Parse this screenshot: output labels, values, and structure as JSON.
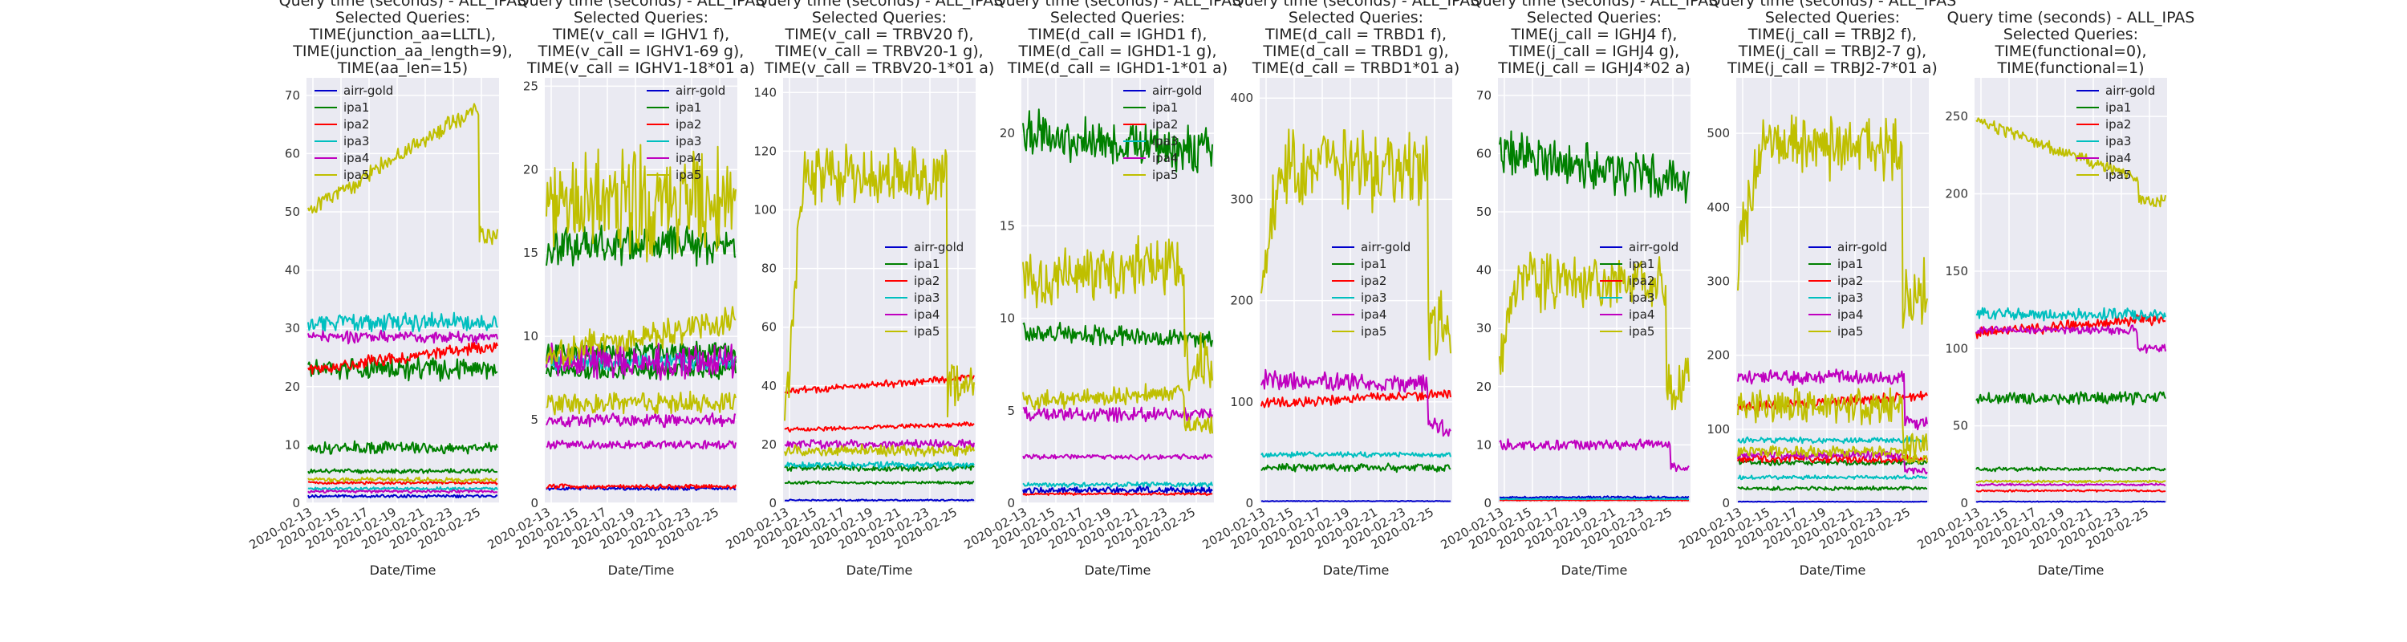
{
  "series_names": [
    "airr-gold",
    "ipa1",
    "ipa2",
    "ipa3",
    "ipa4",
    "ipa5"
  ],
  "colors": {
    "airr-gold": "#0000cc",
    "ipa1": "#008000",
    "ipa2": "#ff0000",
    "ipa3": "#00bfbf",
    "ipa4": "#bf00bf",
    "ipa5": "#bfbf00",
    "ipa5_alt": "#c8c800",
    "panel_bg": "#eaeaf2",
    "grid": "#ffffff"
  },
  "chart_data": [
    {
      "type": "line",
      "title_lines": [
        "Query time (seconds) - ALL_IPAS",
        "Selected Queries:",
        "TIME(junction_aa=LLTL),",
        "TIME(junction_aa_length=9),",
        "TIME(aa_len=15)"
      ],
      "xlabel": "Date/Time",
      "ylabel": "",
      "x_ticks": [
        "2020-02-13",
        "2020-02-15",
        "2020-02-17",
        "2020-02-19",
        "2020-02-21",
        "2020-02-23",
        "2020-02-25"
      ],
      "y_ticks": [
        0,
        10,
        20,
        30,
        40,
        50,
        60,
        70
      ],
      "ylim": [
        0,
        73
      ],
      "legend_position": "top-left",
      "series": [
        {
          "name": "airr-gold",
          "color": "#0000cc",
          "level": 1.2,
          "noise": 0.2
        },
        {
          "name": "ipa1",
          "color": "#008000",
          "level": 9.5,
          "noise": 0.8
        },
        {
          "name": "ipa1",
          "color": "#008000",
          "level": 23,
          "noise": 1.5
        },
        {
          "name": "ipa1",
          "color": "#008000",
          "level": 5.5,
          "noise": 0.3
        },
        {
          "name": "ipa2",
          "color": "#ff0000",
          "level": 23,
          "end_level": 27,
          "noise": 0.8
        },
        {
          "name": "ipa2",
          "color": "#ff0000",
          "level": 3.5,
          "noise": 0.2
        },
        {
          "name": "ipa3",
          "color": "#00bfbf",
          "level": 31,
          "noise": 1.2
        },
        {
          "name": "ipa3",
          "color": "#00bfbf",
          "level": 2.5,
          "noise": 0.2
        },
        {
          "name": "ipa4",
          "color": "#bf00bf",
          "level": 28.5,
          "noise": 0.8
        },
        {
          "name": "ipa4",
          "color": "#bf00bf",
          "level": 2,
          "noise": 0.2
        },
        {
          "name": "ipa5",
          "color": "#bfbf00",
          "level": 50,
          "end_level": 68,
          "drop_at": 0.9,
          "drop_level": 46,
          "noise": 1.2
        },
        {
          "name": "ipa5",
          "color": "#bfbf00",
          "level": 4,
          "noise": 0.3
        }
      ]
    },
    {
      "type": "line",
      "title_lines": [
        "Query time (seconds) - ALL_IPAS",
        "Selected Queries:",
        "TIME(v_call = IGHV1 f),",
        "TIME(v_call = IGHV1-69 g),",
        "TIME(v_call = IGHV1-18*01 a)"
      ],
      "xlabel": "Date/Time",
      "ylabel": "",
      "x_ticks": [
        "2020-02-13",
        "2020-02-15",
        "2020-02-17",
        "2020-02-19",
        "2020-02-21",
        "2020-02-23",
        "2020-02-25"
      ],
      "y_ticks": [
        0,
        5,
        10,
        15,
        20,
        25
      ],
      "ylim": [
        0,
        25.5
      ],
      "legend_position": "top-right",
      "series": [
        {
          "name": "airr-gold",
          "color": "#0000cc",
          "level": 0.9,
          "noise": 0.1
        },
        {
          "name": "ipa1",
          "color": "#008000",
          "level": 15.5,
          "noise": 0.9
        },
        {
          "name": "ipa1",
          "color": "#008000",
          "level": 9,
          "noise": 0.5
        },
        {
          "name": "ipa1",
          "color": "#008000",
          "level": 8,
          "noise": 0.4
        },
        {
          "name": "ipa2",
          "color": "#ff0000",
          "level": 1.0,
          "noise": 0.1
        },
        {
          "name": "ipa3",
          "color": "#00bfbf",
          "level": 8.5,
          "noise": 0.4
        },
        {
          "name": "ipa4",
          "color": "#bf00bf",
          "level": 8.5,
          "noise": 0.8
        },
        {
          "name": "ipa4",
          "color": "#bf00bf",
          "level": 5,
          "noise": 0.3
        },
        {
          "name": "ipa4",
          "color": "#bf00bf",
          "level": 3.5,
          "noise": 0.2
        },
        {
          "name": "ipa5",
          "color": "#bfbf00",
          "level": 18,
          "noise": 2.5
        },
        {
          "name": "ipa5",
          "color": "#bfbf00",
          "level": 9,
          "end_level": 11,
          "noise": 0.7
        },
        {
          "name": "ipa5",
          "color": "#bfbf00",
          "level": 6,
          "noise": 0.5
        }
      ]
    },
    {
      "type": "line",
      "title_lines": [
        "Query time (seconds) - ALL_IPAS",
        "Selected Queries:",
        "TIME(v_call = TRBV20 f),",
        "TIME(v_call = TRBV20-1 g),",
        "TIME(v_call = TRBV20-1*01  a)"
      ],
      "xlabel": "Date/Time",
      "ylabel": "",
      "x_ticks": [
        "2020-02-13",
        "2020-02-15",
        "2020-02-17",
        "2020-02-19",
        "2020-02-21",
        "2020-02-23",
        "2020-02-25"
      ],
      "y_ticks": [
        0,
        20,
        40,
        60,
        80,
        100,
        120,
        140
      ],
      "ylim": [
        0,
        145
      ],
      "legend_position": "center-right",
      "series": [
        {
          "name": "airr-gold",
          "color": "#0000cc",
          "level": 1,
          "noise": 0.2
        },
        {
          "name": "ipa1",
          "color": "#008000",
          "level": 12,
          "noise": 0.8
        },
        {
          "name": "ipa1",
          "color": "#008000",
          "level": 7,
          "noise": 0.4
        },
        {
          "name": "ipa2",
          "color": "#ff0000",
          "level": 38,
          "end_level": 43,
          "noise": 1.0
        },
        {
          "name": "ipa2",
          "color": "#ff0000",
          "level": 25,
          "end_level": 27,
          "noise": 0.6
        },
        {
          "name": "ipa3",
          "color": "#00bfbf",
          "level": 13,
          "noise": 0.8
        },
        {
          "name": "ipa4",
          "color": "#bf00bf",
          "level": 20,
          "noise": 1.2
        },
        {
          "name": "ipa5",
          "color": "#bfbf00",
          "level": 25,
          "start_frac": 0.0,
          "peak_level": 112,
          "peak_from": 0.1,
          "drop_at": 0.86,
          "drop_level": 40,
          "noise": 8
        },
        {
          "name": "ipa5",
          "color": "#bfbf00",
          "level": 18,
          "noise": 1.5
        }
      ]
    },
    {
      "type": "line",
      "title_lines": [
        "Query time (seconds) - ALL_IPAS",
        "Selected Queries:",
        "TIME(d_call = IGHD1 f),",
        "TIME(d_call = IGHD1-1 g),",
        "TIME(d_call = IGHD1-1*01 a)"
      ],
      "xlabel": "Date/Time",
      "ylabel": "",
      "x_ticks": [
        "2020-02-13",
        "2020-02-15",
        "2020-02-17",
        "2020-02-19",
        "2020-02-21",
        "2020-02-23",
        "2020-02-25"
      ],
      "y_ticks": [
        0,
        5,
        10,
        15,
        20
      ],
      "ylim": [
        0,
        23
      ],
      "legend_position": "top-right",
      "series": [
        {
          "name": "airr-gold",
          "color": "#0000cc",
          "level": 0.7,
          "noise": 0.15
        },
        {
          "name": "ipa1",
          "color": "#008000",
          "level": 20,
          "end_level": 19,
          "noise": 1.0
        },
        {
          "name": "ipa1",
          "color": "#008000",
          "level": 9.3,
          "end_level": 8.8,
          "noise": 0.4
        },
        {
          "name": "ipa2",
          "color": "#ff0000",
          "level": 0.5,
          "noise": 0.05
        },
        {
          "name": "ipa3",
          "color": "#00bfbf",
          "level": 1.0,
          "noise": 0.1
        },
        {
          "name": "ipa4",
          "color": "#bf00bf",
          "level": 4.8,
          "noise": 0.3
        },
        {
          "name": "ipa4",
          "color": "#bf00bf",
          "level": 2.5,
          "noise": 0.1
        },
        {
          "name": "ipa5",
          "color": "#bfbf00",
          "level": 12,
          "end_level": 13,
          "drop_at": 0.85,
          "drop_level": 7.5,
          "noise": 1.2
        },
        {
          "name": "ipa5",
          "color": "#bfbf00",
          "level": 5.5,
          "end_level": 6,
          "drop_at": 0.85,
          "drop_level": 4.2,
          "noise": 0.4
        }
      ]
    },
    {
      "type": "line",
      "title_lines": [
        "Query time (seconds) - ALL_IPAS",
        "Selected Queries:",
        "TIME(d_call = TRBD1 f),",
        "TIME(d_call = TRBD1 g),",
        "TIME(d_call = TRBD1*01 a)"
      ],
      "xlabel": "Date/Time",
      "ylabel": "",
      "x_ticks": [
        "2020-02-13",
        "2020-02-15",
        "2020-02-17",
        "2020-02-19",
        "2020-02-21",
        "2020-02-23",
        "2020-02-25"
      ],
      "y_ticks": [
        0,
        100,
        200,
        300,
        400
      ],
      "ylim": [
        0,
        420
      ],
      "legend_position": "center-left",
      "series": [
        {
          "name": "airr-gold",
          "color": "#0000cc",
          "level": 2,
          "noise": 0.3
        },
        {
          "name": "ipa1",
          "color": "#008000",
          "level": 35,
          "noise": 3
        },
        {
          "name": "ipa2",
          "color": "#ff0000",
          "level": 98,
          "end_level": 108,
          "noise": 4
        },
        {
          "name": "ipa3",
          "color": "#00bfbf",
          "level": 48,
          "noise": 2
        },
        {
          "name": "ipa4",
          "color": "#bf00bf",
          "level": 122,
          "end_level": 118,
          "drop_at": 0.88,
          "drop_level": 75,
          "noise": 7
        },
        {
          "name": "ipa5",
          "color": "#bfbf00",
          "level": 220,
          "peak_level": 330,
          "peak_from": 0.1,
          "drop_at": 0.88,
          "drop_level": 175,
          "noise": 30
        }
      ]
    },
    {
      "type": "line",
      "title_lines": [
        "Query time (seconds) - ALL_IPAS",
        "Selected Queries:",
        "TIME(j_call = IGHJ4 f),",
        "TIME(j_call = IGHJ4 g),",
        "TIME(j_call = IGHJ4*02 a)"
      ],
      "xlabel": "Date/Time",
      "ylabel": "",
      "x_ticks": [
        "2020-02-13",
        "2020-02-15",
        "2020-02-17",
        "2020-02-19",
        "2020-02-21",
        "2020-02-23",
        "2020-02-25"
      ],
      "y_ticks": [
        0,
        10,
        20,
        30,
        40,
        50,
        60,
        70
      ],
      "ylim": [
        0,
        73
      ],
      "legend_position": "center-right",
      "series": [
        {
          "name": "airr-gold",
          "color": "#0000cc",
          "level": 1,
          "noise": 0.15
        },
        {
          "name": "ipa1",
          "color": "#008000",
          "level": 60,
          "end_level": 55,
          "noise": 3
        },
        {
          "name": "ipa2",
          "color": "#ff0000",
          "level": 0.5,
          "noise": 0.05
        },
        {
          "name": "ipa3",
          "color": "#00bfbf",
          "level": 0.7,
          "noise": 0.05
        },
        {
          "name": "ipa4",
          "color": "#bf00bf",
          "level": 10,
          "drop_at": 0.9,
          "drop_level": 6,
          "noise": 0.7
        },
        {
          "name": "ipa5",
          "color": "#bfbf00",
          "level": 25,
          "peak_level": 38,
          "peak_from": 0.08,
          "drop_at": 0.88,
          "drop_level": 20,
          "noise": 4
        }
      ]
    },
    {
      "type": "line",
      "title_lines": [
        "Query time (seconds) - ALL_IPAS",
        "Selected Queries:",
        "TIME(j_call = TRBJ2 f),",
        "TIME(j_call = TRBJ2-7 g),",
        "TIME(j_call = TRBJ2-7*01 a)"
      ],
      "xlabel": "Date/Time",
      "ylabel": "",
      "x_ticks": [
        "2020-02-13",
        "2020-02-15",
        "2020-02-17",
        "2020-02-19",
        "2020-02-21",
        "2020-02-23",
        "2020-02-25"
      ],
      "y_ticks": [
        0,
        100,
        200,
        300,
        400,
        500
      ],
      "ylim": [
        0,
        575
      ],
      "legend_position": "center-left",
      "series": [
        {
          "name": "airr-gold",
          "color": "#0000cc",
          "level": 2,
          "noise": 0.3
        },
        {
          "name": "ipa1",
          "color": "#008000",
          "level": 20,
          "noise": 2
        },
        {
          "name": "ipa1",
          "color": "#008000",
          "level": 55,
          "noise": 3
        },
        {
          "name": "ipa2",
          "color": "#ff0000",
          "level": 130,
          "end_level": 145,
          "noise": 5
        },
        {
          "name": "ipa2",
          "color": "#ff0000",
          "level": 60,
          "noise": 4
        },
        {
          "name": "ipa3",
          "color": "#00bfbf",
          "level": 85,
          "noise": 3
        },
        {
          "name": "ipa3",
          "color": "#00bfbf",
          "level": 35,
          "noise": 2
        },
        {
          "name": "ipa4",
          "color": "#bf00bf",
          "level": 170,
          "drop_at": 0.88,
          "drop_level": 110,
          "noise": 8
        },
        {
          "name": "ipa4",
          "color": "#bf00bf",
          "level": 65,
          "drop_at": 0.88,
          "drop_level": 45,
          "noise": 4
        },
        {
          "name": "ipa5",
          "color": "#bfbf00",
          "level": 320,
          "peak_level": 480,
          "peak_from": 0.12,
          "drop_at": 0.87,
          "drop_level": 280,
          "noise": 35
        },
        {
          "name": "ipa5",
          "color": "#bfbf00",
          "level": 130,
          "drop_at": 0.87,
          "drop_level": 80,
          "noise": 20
        },
        {
          "name": "ipa5",
          "color": "#bfbf00",
          "level": 70,
          "drop_at": 0.87,
          "drop_level": 60,
          "noise": 6
        }
      ]
    },
    {
      "type": "line",
      "title_lines": [
        "Query time (seconds) - ALL_IPAS",
        "Selected Queries:",
        "TIME(functional=0),",
        "TIME(functional=1)"
      ],
      "xlabel": "Date/Time",
      "ylabel": "",
      "x_ticks": [
        "2020-02-13",
        "2020-02-15",
        "2020-02-17",
        "2020-02-19",
        "2020-02-21",
        "2020-02-23",
        "2020-02-25"
      ],
      "y_ticks": [
        0,
        50,
        100,
        150,
        200,
        250
      ],
      "ylim": [
        0,
        275
      ],
      "legend_position": "top-right",
      "series": [
        {
          "name": "airr-gold",
          "color": "#0000cc",
          "level": 1,
          "noise": 0.2
        },
        {
          "name": "ipa1",
          "color": "#008000",
          "level": 68,
          "noise": 3
        },
        {
          "name": "ipa1",
          "color": "#008000",
          "level": 22,
          "noise": 1
        },
        {
          "name": "ipa2",
          "color": "#ff0000",
          "level": 110,
          "end_level": 120,
          "noise": 3
        },
        {
          "name": "ipa2",
          "color": "#ff0000",
          "level": 8,
          "noise": 0.5
        },
        {
          "name": "ipa3",
          "color": "#00bfbf",
          "level": 122,
          "noise": 3
        },
        {
          "name": "ipa4",
          "color": "#bf00bf",
          "level": 112,
          "drop_at": 0.85,
          "drop_level": 100,
          "noise": 2
        },
        {
          "name": "ipa4",
          "color": "#bf00bf",
          "level": 12,
          "noise": 0.5
        },
        {
          "name": "ipa5",
          "color": "#bfbf00",
          "level": 247,
          "drop_at": 0.86,
          "drop_level": 195,
          "end_level": 210,
          "noise": 3
        },
        {
          "name": "ipa5",
          "color": "#bfbf00",
          "level": 14,
          "noise": 0.6
        }
      ]
    }
  ]
}
